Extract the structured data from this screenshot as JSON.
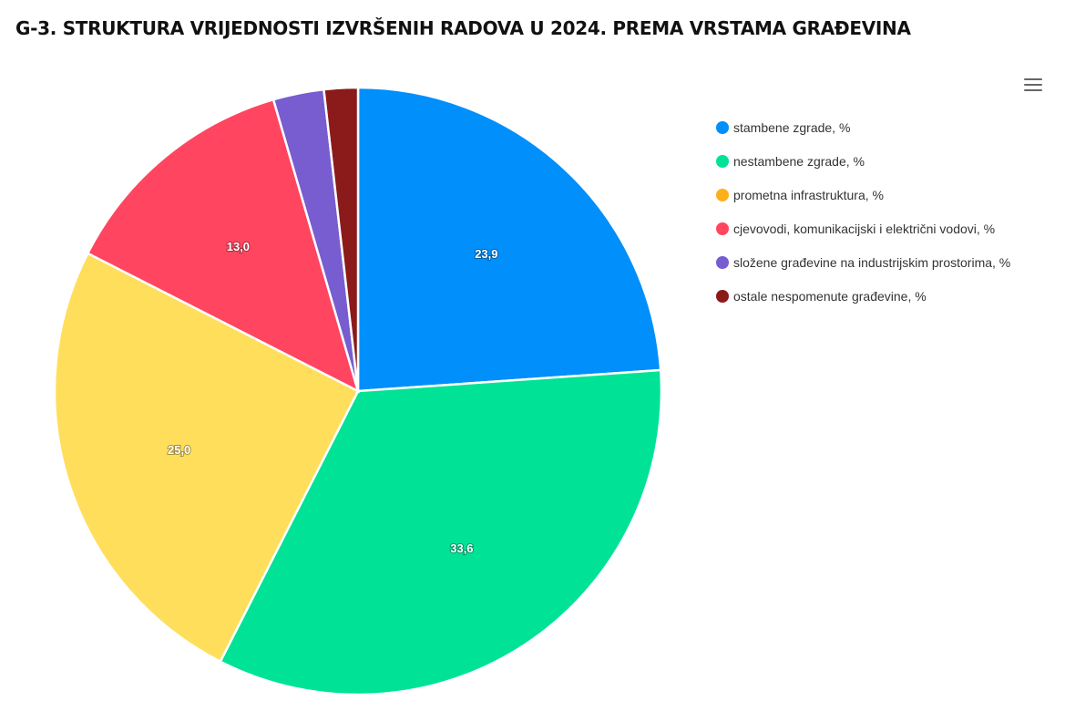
{
  "title": "G-3. STRUKTURA VRIJEDNOSTI IZVRŠENIH RADOVA U 2024. PREMA VRSTAMA GRAĐEVINA",
  "toolbar": {
    "menu_icon": "hamburger-menu-icon"
  },
  "legend": {
    "items": [
      {
        "label": "stambene zgrade, %",
        "color": "#008FFB"
      },
      {
        "label": "nestambene zgrade, %",
        "color": "#00E396"
      },
      {
        "label": "prometna infrastruktura, %",
        "color": "#FEB019"
      },
      {
        "label": "cjevovodi, komunikacijski i električni vodovi, %",
        "color": "#FF4560"
      },
      {
        "label": "složene građevine na industrijskim prostorima, %",
        "color": "#775DD0"
      },
      {
        "label": "ostale nespomenute građevine, %",
        "color": "#8B1A1A"
      }
    ]
  },
  "chart_data": {
    "type": "pie",
    "title": "G-3. STRUKTURA VRIJEDNOSTI IZVRŠENIH RADOVA U 2024. PREMA VRSTAMA GRAĐEVINA",
    "categories": [
      "stambene zgrade, %",
      "nestambene zgrade, %",
      "prometna infrastruktura, %",
      "cjevovodi, komunikacijski i električni vodovi, %",
      "složene građevine na industrijskim prostorima, %",
      "ostale nespomenute građevine, %"
    ],
    "values": [
      23.9,
      33.6,
      25.0,
      13.0,
      2.7,
      1.8
    ],
    "data_labels": [
      "23,9",
      "33,6",
      "25,0",
      "13,0",
      "",
      ""
    ],
    "slice_colors": [
      "#008FFB",
      "#00E396",
      "#FFDE5C",
      "#FF4560",
      "#775DD0",
      "#8B1A1A"
    ],
    "legend_position": "right",
    "start_angle": "12 o'clock, clockwise"
  }
}
